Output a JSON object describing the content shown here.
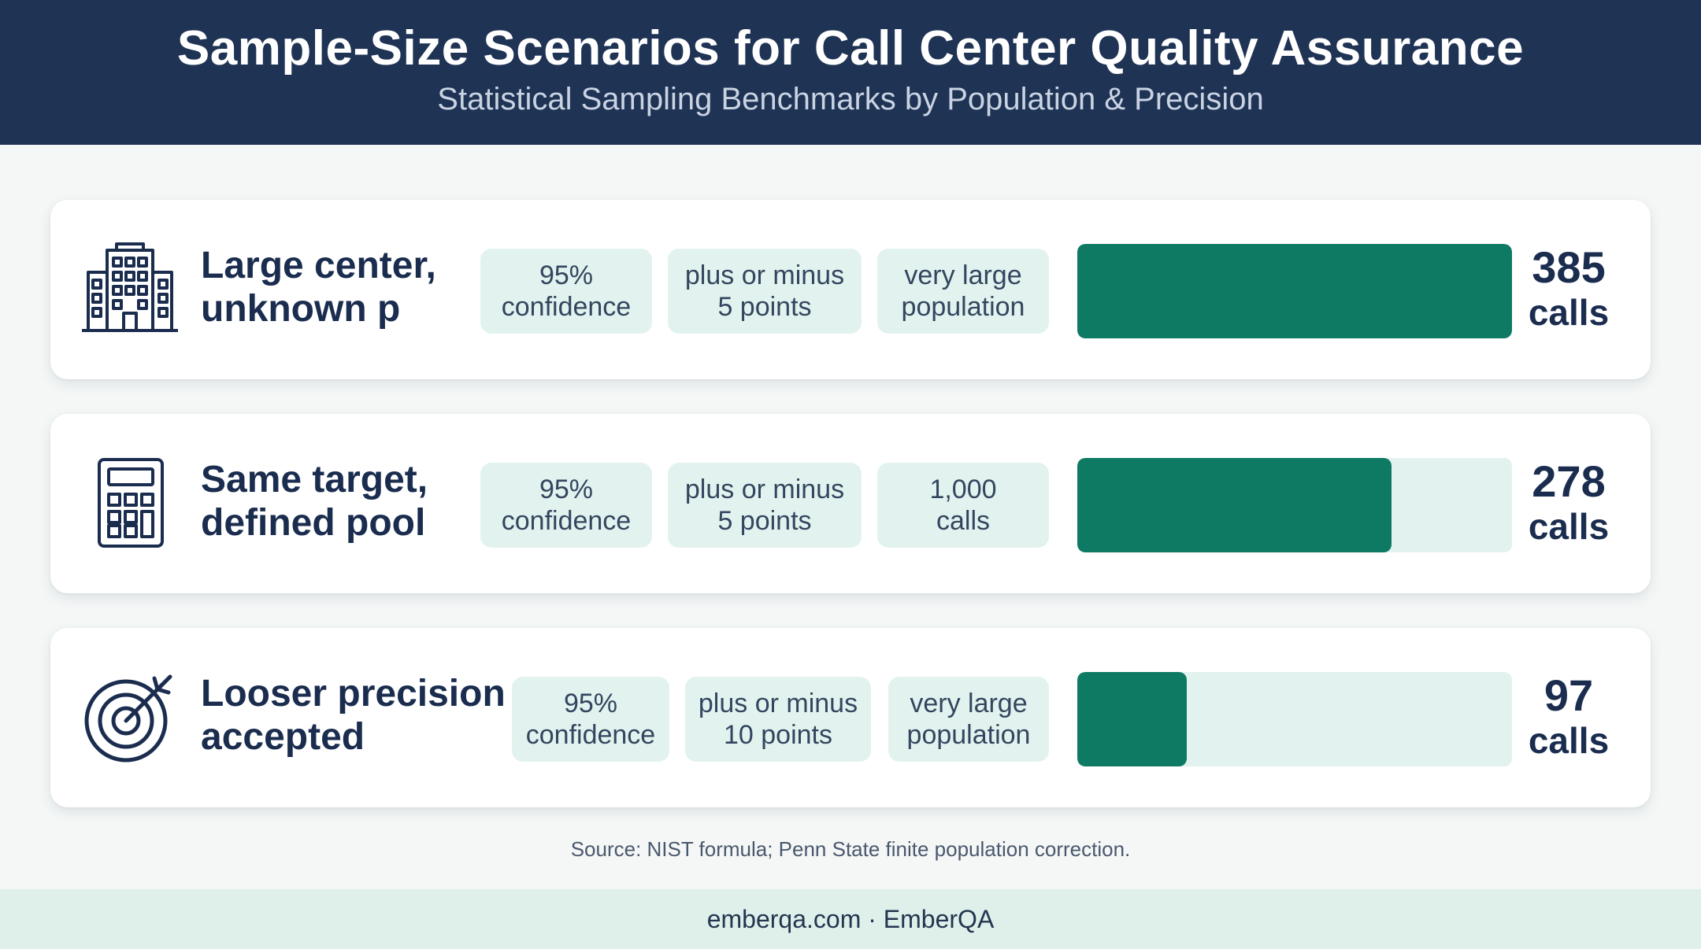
{
  "header": {
    "title": "Sample-Size Scenarios for Call Center Quality Assurance",
    "subtitle": "Statistical Sampling Benchmarks by Population & Precision"
  },
  "colors": {
    "header_bg": "#1f3355",
    "bar_fill": "#0e7a63",
    "bar_track": "#e2f3ef",
    "chip_bg": "#e2f3ef",
    "footer_bg": "#dff0ea"
  },
  "chart_data": {
    "type": "bar",
    "orientation": "horizontal",
    "categories": [
      "Large center, unknown p",
      "Same target, defined pool",
      "Looser precision accepted"
    ],
    "values": [
      385,
      278,
      97
    ],
    "unit": "calls",
    "xlim": [
      0,
      385
    ]
  },
  "rows": [
    {
      "icon": "building-icon",
      "label": "Large center,\nunknown p",
      "chips": [
        "95%\nconfidence",
        "plus or minus\n5 points",
        "very large\npopulation"
      ],
      "value": "385",
      "unit": "calls"
    },
    {
      "icon": "calculator-icon",
      "label": "Same target,\ndefined pool",
      "chips": [
        "95%\nconfidence",
        "plus or minus\n5 points",
        "1,000\ncalls"
      ],
      "value": "278",
      "unit": "calls"
    },
    {
      "icon": "target-icon",
      "label": "Looser precision\naccepted",
      "chips": [
        "95%\nconfidence",
        "plus or minus\n10 points",
        "very large\npopulation"
      ],
      "value": "97",
      "unit": "calls"
    }
  ],
  "source": "Source: NIST formula; Penn State finite population correction.",
  "footer": "emberqa.com · EmberQA"
}
